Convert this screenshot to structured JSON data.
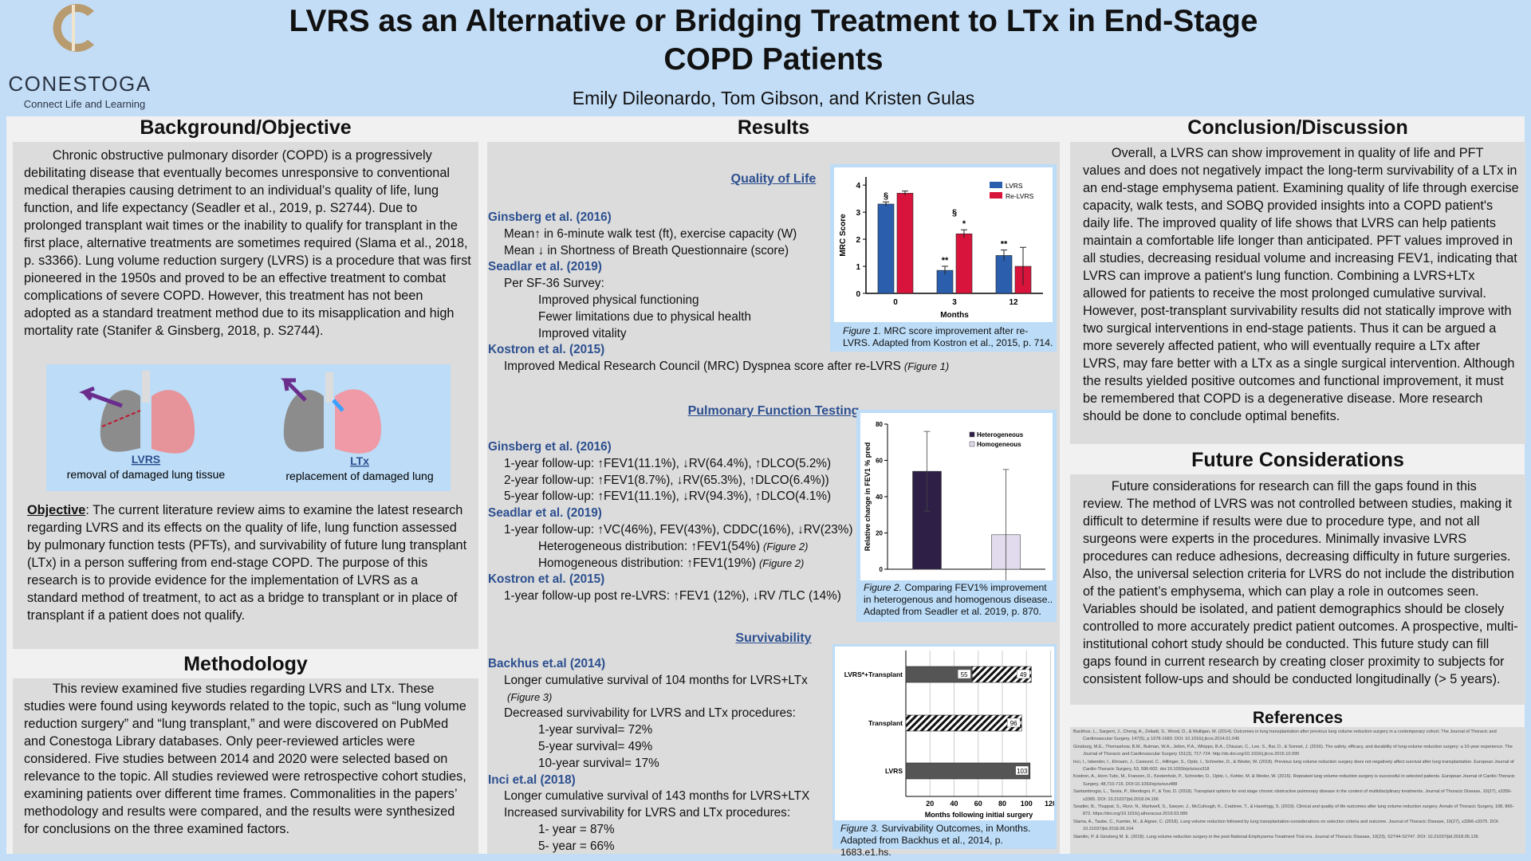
{
  "header": {
    "title": "LVRS as an Alternative or Bridging Treatment to LTx in End-Stage COPD Patients",
    "authors": "Emily Dileonardo, Tom Gibson, and Kristen Gulas",
    "logo": {
      "name": "CONESTOGA",
      "tagline": "Connect Life and Learning"
    }
  },
  "background": {
    "heading": "Background/Objective",
    "text": "Chronic obstructive pulmonary disorder (COPD) is a progressively debilitating disease that eventually becomes unresponsive to conventional medical therapies causing detriment to an individual’s quality of life, lung function, and life expectancy (Seadler et al., 2019, p. S2744). Due to prolonged transplant wait times or the inability to qualify for transplant in the first place, alternative treatments are sometimes required (Slama et al., 2018, p. s3366). Lung volume reduction surgery (LVRS) is a procedure that was first pioneered in the 1950s and proved to be an effective treatment to combat complications of severe COPD. However, this treatment has not been adopted as a standard treatment method due to its misapplication and high mortality rate (Stanifer & Ginsberg, 2018, p. S2744).",
    "illustration": [
      {
        "label": "LVRS",
        "caption": "removal of damaged lung tissue"
      },
      {
        "label": "LTx",
        "caption": "replacement of damaged lung"
      }
    ],
    "objective": {
      "label": "Objective",
      "text": ": The current literature review aims to examine the latest research regarding LVRS and its effects on the quality of life, lung function assessed by pulmonary function tests (PFTs), and survivability of future lung transplant (LTx)  in a person suffering from end-stage COPD. The purpose of this research is to provide evidence for the implementation of LVRS as a standard method of treatment, to act as a bridge to transplant or in place of transplant if a patient does not qualify."
    }
  },
  "methodology": {
    "heading": "Methodology",
    "text": "This review examined five studies regarding LVRS and LTx. These studies were found using keywords related to the topic, such as “lung volume reduction surgery” and “lung transplant,” and were discovered on PubMed and Conestoga Library databases. Only peer-reviewed articles were considered. Five studies between 2014 and 2020 were selected based on relevance to the topic. All studies reviewed were retrospective cohort studies, examining patients over different time frames. Commonalities in the papers’ methodology and results were compared, and the results were synthesized for conclusions on the three examined factors."
  },
  "results": {
    "heading": "Results",
    "sections": [
      {
        "heading": "Quality of Life",
        "items": [
          {
            "level": 0,
            "text": "Ginsberg et al. (2016)"
          },
          {
            "level": 1,
            "text": "Mean↑ in 6-minute walk test (ft), exercise capacity (W)"
          },
          {
            "level": 1,
            "text": "Mean ↓  in Shortness of Breath Questionnaire (score)"
          },
          {
            "level": 0,
            "text": "Seadlar et al. (2019)"
          },
          {
            "level": 1,
            "text": "Per SF-36 Survey:"
          },
          {
            "level": 2,
            "text": "Improved physical functioning"
          },
          {
            "level": 2,
            "text": "Fewer limitations due to physical health"
          },
          {
            "level": 2,
            "text": "Improved vitality"
          },
          {
            "level": 0,
            "text": "Kostron et al. (2015)"
          },
          {
            "level": 1,
            "text": "Improved Medical Research Council (MRC) Dyspnea score after re-LVRS",
            "note": "(Figure 1)"
          }
        ]
      },
      {
        "heading": "Pulmonary Function Testing",
        "items": [
          {
            "level": 0,
            "text": "Ginsberg et al. (2016)"
          },
          {
            "level": 1,
            "text": "1-year follow-up: ↑FEV1(11.1%), ↓RV(64.4%), ↑DLCO(5.2%)"
          },
          {
            "level": 1,
            "text": "2-year follow-up: ↑FEV1(8.7%), ↓RV(65.3%), ↑DLCO(6.4%))"
          },
          {
            "level": 1,
            "text": "5-year follow-up: ↑FEV1(11.1%), ↓RV(94.3%), ↑DLCO(4.1%)"
          },
          {
            "level": 0,
            "text": "Seadlar et al. (2019)"
          },
          {
            "level": 1,
            "text": "1-year follow-up: ↑VC(46%), FEV(43%), CDDC(16%), ↓RV(23%)"
          },
          {
            "level": 2,
            "text": "Heterogeneous distribution: ↑FEV1(54%)",
            "note": "(Figure 2)"
          },
          {
            "level": 2,
            "text": "Homogeneous distribution: ↑FEV1(19%)",
            "note": "(Figure 2)"
          },
          {
            "level": 0,
            "text": "Kostron et al. (2015)"
          },
          {
            "level": 1,
            "text": "1-year follow-up post re-LVRS: ↑FEV1 (12%), ↓RV /TLC (14%)"
          }
        ]
      },
      {
        "heading": "Survivability",
        "items": [
          {
            "level": 0,
            "text": "Backhus et.al (2014)"
          },
          {
            "level": 1,
            "text": "Longer cumulative survival of 104 months for LVRS+LTx"
          },
          {
            "level": 1,
            "note": "(Figure 3)"
          },
          {
            "level": 1,
            "text": "Decreased survivability for LVRS and LTx procedures:"
          },
          {
            "level": 2,
            "text": "1-year survival= 72%"
          },
          {
            "level": 2,
            "text": "5-year survival= 49%"
          },
          {
            "level": 2,
            "text": "10-year survival=  17%"
          },
          {
            "level": 0,
            "text": "Inci et.al (2018)"
          },
          {
            "level": 1,
            "text": "Longer cumulative survival of 143 months for LVRS+LTX"
          },
          {
            "level": 1,
            "text": "Increased survivability for LVRS and LTx procedures:"
          },
          {
            "level": 2,
            "text": "1- year = 87%"
          },
          {
            "level": 2,
            "text": "5- year =  66%"
          }
        ]
      }
    ]
  },
  "figures": [
    {
      "caption": {
        "label": "Figure 1.",
        "text": " MRC score improvement after re-LVRS. Adapted from Kostron et al., 2015, p. 714."
      },
      "chart": {
        "type": "bar",
        "xlabel": "Months",
        "ylabel": "MRC Score",
        "categories": [
          "0",
          "3",
          "12"
        ],
        "series": [
          {
            "name": "LVRS",
            "color": "#2b5fad",
            "values": [
              3.3,
              0.85,
              1.4
            ],
            "errors": [
              0.08,
              0.15,
              0.2
            ]
          },
          {
            "name": "Re-LVRS",
            "color": "#d8143c",
            "values": [
              3.7,
              2.2,
              1.0
            ],
            "errors": [
              0.08,
              0.15,
              0.7
            ]
          }
        ],
        "annotations": [
          "§",
          "**",
          "§",
          "*",
          "**"
        ],
        "ylim": [
          0,
          4.3
        ],
        "yticks": [
          0,
          1,
          2,
          3,
          4
        ]
      }
    },
    {
      "caption": {
        "label": "Figure 2.",
        "text": " Comparing FEV1% improvement in heterogenous and homogenous disease.. Adapted from Seadler et al. 2019, p. 870."
      },
      "chart": {
        "type": "bar",
        "ylabel": "Relative change in FEV1 % pred",
        "categories": [
          "Heterogeneous",
          "Homogeneous"
        ],
        "values": [
          54,
          19
        ],
        "errors": [
          22,
          36
        ],
        "colors": [
          "#2e1f47",
          "#e2dbee"
        ],
        "ylim": [
          0,
          80
        ],
        "yticks": [
          0,
          20,
          40,
          60,
          80
        ]
      }
    },
    {
      "caption": {
        "label": "Figure 3.",
        "text": "  Survivability Outcomes, in Months. Adapted from Backhus et al., 2014, p. 1683.e1.hs."
      },
      "chart": {
        "type": "stacked-hbar",
        "xlabel": "Months following initial surgery",
        "categories": [
          "LVRS*+Transplant",
          "Transplant",
          "LVRS"
        ],
        "series": [
          {
            "color": "#555555",
            "values": [
              55,
              null,
              103
            ]
          },
          {
            "color": "hatch",
            "values": [
              49,
              96,
              null
            ]
          }
        ],
        "xlim": [
          0,
          121
        ],
        "xticks": [
          20,
          40,
          60,
          80,
          100,
          120
        ],
        "grid": true
      }
    }
  ],
  "conclusion": {
    "heading": "Conclusion/Discussion",
    "text": "Overall, a LVRS can show improvement in quality of life and PFT values and does not negatively impact the long-term survivability of a LTx in an end-stage emphysema patient. Examining quality of life through exercise capacity, walk tests, and SOBQ provided insights into a COPD patient's daily life. The improved quality of life shows that LVRS can help patients maintain a comfortable life longer than anticipated. PFT values improved in all studies, decreasing residual volume and increasing FEV1, indicating that LVRS can improve a patient's lung function. Combining a LVRS+LTx allowed for patients to receive the most prolonged cumulative survival. However, post-transplant survivability results did not statically improve with two surgical interventions in end-stage patients. Thus it can be argued a more severely affected patient, who will eventually require a LTx after LVRS, may fare better with a LTx as a single surgical intervention. Although the results yielded positive outcomes and functional improvement, it must be remembered that COPD is a degenerative disease. More research should be done to conclude optimal benefits."
  },
  "future": {
    "heading": "Future Considerations",
    "text": "Future considerations for research can fill the gaps found in this review. The method of LVRS was not controlled between studies, making it difficult to determine if results were due to procedure type, and not all surgeons were experts in the procedures. Minimally invasive LVRS procedures can reduce adhesions, decreasing difficulty in future surgeries. Also, the universal selection criteria for LVRS do not include the distribution of the patient’s emphysema, which can play a role in outcomes seen. Variables should be isolated, and patient demographics should be closely controlled to more accurately predict patient outcomes.  A prospective, multi-institutional cohort study should be conducted. This future study can fill gaps found in current research by creating closer proximity to subjects for consistent follow-ups and should be conducted longitudinally (> 5 years)."
  },
  "references": {
    "heading": "References",
    "items": [
      "Backhus, L., Sargent, J., Cheng, A., Zeliadt, S., Wood, D., & Mulligan, M. (2014). Outcomes in lung transplantation after previous lung volume reduction surgery in a contemporary cohort. The Journal of Thoracic and Cardiovascular Surgery, 147(5), p 1678-1683. DOI: 10.1016/j.jtcvs.2014.01.045",
      "Ginsburg, M.E., Thomashow, B.M., Bulman, W.A., Jellen, P.A., Whippo, B.A., Chiuzan, C., Lee, S., Bai, D., & Sonnet, J. (2016). The safety, efficacy, and durability of lung-volume reduction surgery: a 10-year experience. The Journal of Thoracic and Cardiovascular Surgery 151(3), 717-724. http://dx.doi.org/10.1016/j.jtcvs.2015.10.095",
      "Inci, I., Iskender, I., Ehrsam, J., Caviezel, C., Hillinger, S., Opitz, I., Schneiter, D., & Weder, W. (2018). Previous lung volume reduction surgery does not negatively affect survival after lung transplantation. European Journal of Cardio-Thoracic Surgery, 53, 596-602. doi:10.1093/ejcts/ezx318",
      "Kostron, A., Horn-Tutic, M., Franzen, D., Kestenholz, P., Schneiter, D., Opitz, I., Kohler, M. &  Weder, W. (2015). Repeated lung volume reduction surgery is successful in selected patients. European Journal of Cardio-Thoracic Surgery, 48,710-715. DOI:10.1093/ejcts/ezu488",
      "Santambrogio, L., Tarsia, P., Mendogni, P., & Tosi, D. (2018). Transplant options for end stage chronic obstructive pulmonary disease in the context of multidisciplinary treatments. Journal of Thoracic Disease, 10(27), s3356-s3365. DOI: 10.21037/jtd.2018.04.166",
      "Seadler, B., Thuppal, S., Rizvi, N., Markwell, S., Sawyer, J., McCullough, K., Crabtree, T., & Hazelrigg, S. (2019). Clinical and quality of life outcomes after lung volume reduction surgery. Annals of Thoracic Surgery, 108, 866-872. https://doi.org/10.1016/j.athoracsur.2019.03.089",
      "Slama, A., Taube, C., Kamler, M., & Aigner, C. (2018). Lung volume reduction followed by lung transplantation-considerations on selection criteria and outcome. Journal of Thoracic Disease, 10(27), s3366-s3375. DOI: 10.21037/jtd.2018.06.164",
      "Stanifer, P. & Ginsberg M. E. (2018). Lung volume reduction surgery in the post-National Emphysema Treatment Trial era. Journal of Thoracic Disease, 10(23), S2744-S2747. DOI: 10.21037/jtd.2018.05.135"
    ]
  }
}
